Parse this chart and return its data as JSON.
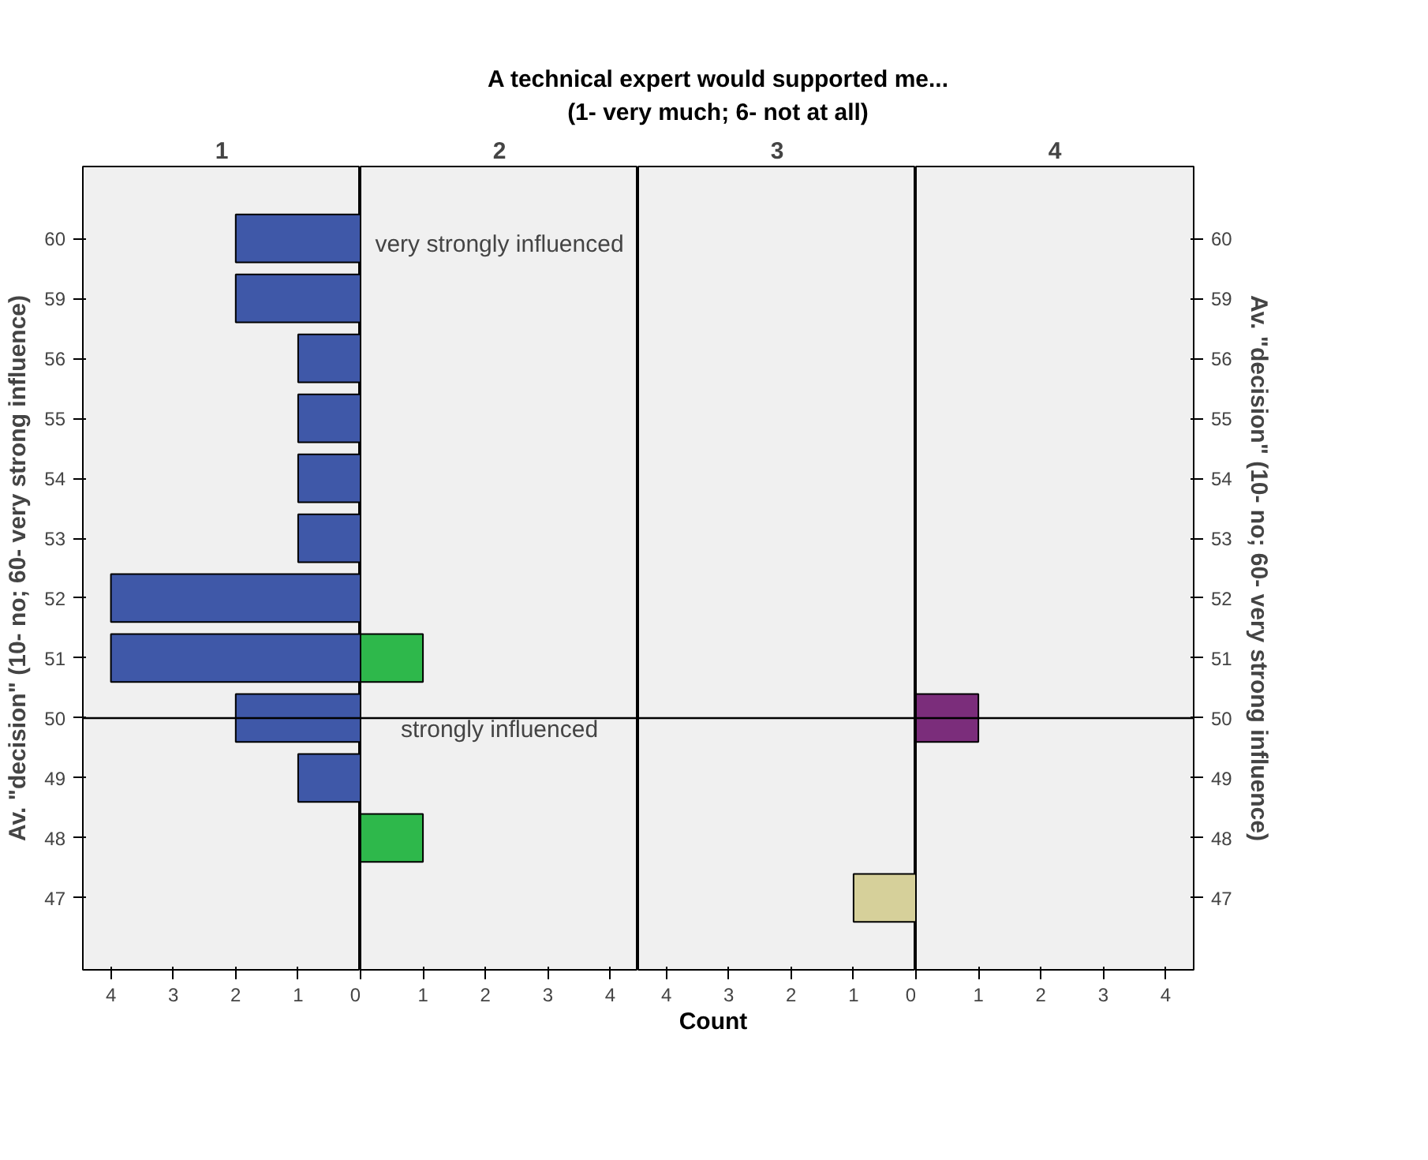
{
  "chart_data": [
    {
      "type": "bar",
      "orientation": "horizontal",
      "title": "1",
      "ylabel": "Av. \"decision\" (10- no; 60- very strong influence)",
      "categories": [
        "60",
        "59",
        "56",
        "55",
        "54",
        "53",
        "52",
        "51",
        "50",
        "49",
        "48",
        "47"
      ],
      "values": [
        2,
        2,
        1,
        1,
        1,
        1,
        4,
        4,
        2,
        1,
        null,
        null
      ],
      "color": "#3f58a8",
      "xlim": [
        4.45,
        0
      ],
      "xticks": [
        4,
        3,
        2,
        1,
        0
      ],
      "grid": false,
      "ref_lines": [
        {
          "axis": "y",
          "value": "50"
        }
      ]
    },
    {
      "type": "bar",
      "orientation": "horizontal",
      "title": "2",
      "subtitle": "A technical expert would supported me...\n(1- very much; 6- not at all)",
      "xlabel": "Count",
      "categories": [
        "60",
        "59",
        "56",
        "55",
        "54",
        "53",
        "52",
        "51",
        "50",
        "49",
        "48",
        "47"
      ],
      "values": [
        null,
        null,
        null,
        null,
        null,
        null,
        null,
        1,
        null,
        null,
        1,
        null
      ],
      "color": "#2eb84b",
      "xlim": [
        0,
        4.45
      ],
      "xticks": [
        {
          "value": 0,
          "label": null
        },
        1,
        2,
        3,
        4
      ],
      "grid": false,
      "tick_labels": "x",
      "annotations": [
        "very strongly influenced",
        "strongly influenced"
      ],
      "ref_lines": [
        {
          "axis": "y",
          "value": "50"
        }
      ]
    },
    {
      "type": "bar",
      "orientation": "horizontal",
      "title": "3",
      "categories": [
        "60",
        "59",
        "56",
        "55",
        "54",
        "53",
        "52",
        "51",
        "50",
        "49",
        "48",
        "47"
      ],
      "values": [
        null,
        null,
        null,
        null,
        null,
        null,
        null,
        null,
        null,
        null,
        null,
        1
      ],
      "color": "#d6d09a",
      "xlim": [
        4.45,
        0
      ],
      "xticks": [
        4,
        3,
        2,
        1,
        0
      ],
      "grid": false,
      "tick_labels": "x",
      "ref_lines": [
        {
          "axis": "y",
          "value": "50"
        }
      ]
    },
    {
      "type": "bar",
      "orientation": "horizontal",
      "title": "4",
      "y2label": "Av. \"decision\" (10- no; 60- very strong influence)",
      "categories": [
        "60",
        "59",
        "56",
        "55",
        "54",
        "53",
        "52",
        "51",
        "50",
        "49",
        "48",
        "47"
      ],
      "values": [
        null,
        null,
        null,
        null,
        null,
        null,
        null,
        null,
        1,
        null,
        null,
        null
      ],
      "color": "#7b2d7b",
      "xlim": [
        0,
        4.45
      ],
      "xticks": [
        {
          "value": 0,
          "label": null
        },
        1,
        2,
        3,
        4
      ],
      "grid": false,
      "ref_lines": [
        {
          "axis": "y",
          "value": "50"
        }
      ]
    }
  ]
}
